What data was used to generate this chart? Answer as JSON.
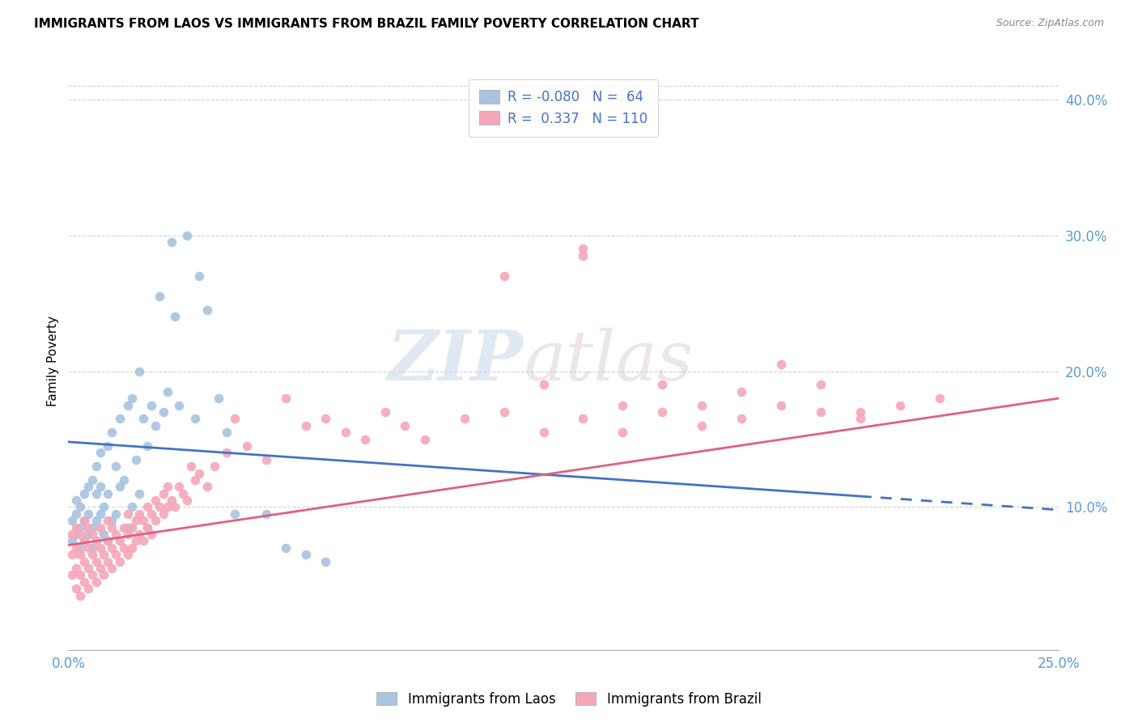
{
  "title": "IMMIGRANTS FROM LAOS VS IMMIGRANTS FROM BRAZIL FAMILY POVERTY CORRELATION CHART",
  "source": "Source: ZipAtlas.com",
  "ylabel": "Family Poverty",
  "xlim": [
    0.0,
    0.25
  ],
  "ylim": [
    -0.005,
    0.42
  ],
  "laos_color": "#a8c4e0",
  "brazil_color": "#f4a7b9",
  "laos_line_color": "#4472c4",
  "brazil_line_color": "#e06080",
  "laos_R": -0.08,
  "laos_N": 64,
  "brazil_R": 0.337,
  "brazil_N": 110,
  "legend_label_laos": "Immigrants from Laos",
  "legend_label_brazil": "Immigrants from Brazil",
  "watermark_zip": "ZIP",
  "watermark_atlas": "atlas",
  "laos_x": [
    0.001,
    0.001,
    0.002,
    0.002,
    0.002,
    0.003,
    0.003,
    0.003,
    0.004,
    0.004,
    0.004,
    0.005,
    0.005,
    0.005,
    0.006,
    0.006,
    0.006,
    0.007,
    0.007,
    0.007,
    0.008,
    0.008,
    0.008,
    0.009,
    0.009,
    0.01,
    0.01,
    0.01,
    0.011,
    0.011,
    0.012,
    0.012,
    0.013,
    0.013,
    0.014,
    0.015,
    0.015,
    0.016,
    0.016,
    0.017,
    0.018,
    0.018,
    0.019,
    0.02,
    0.02,
    0.021,
    0.022,
    0.023,
    0.024,
    0.025,
    0.026,
    0.027,
    0.028,
    0.03,
    0.032,
    0.033,
    0.035,
    0.038,
    0.04,
    0.042,
    0.05,
    0.055,
    0.06,
    0.065
  ],
  "laos_y": [
    0.075,
    0.09,
    0.08,
    0.095,
    0.105,
    0.07,
    0.085,
    0.1,
    0.075,
    0.09,
    0.11,
    0.08,
    0.095,
    0.115,
    0.07,
    0.085,
    0.12,
    0.09,
    0.11,
    0.13,
    0.095,
    0.115,
    0.14,
    0.08,
    0.1,
    0.075,
    0.11,
    0.145,
    0.09,
    0.155,
    0.095,
    0.13,
    0.115,
    0.165,
    0.12,
    0.085,
    0.175,
    0.1,
    0.18,
    0.135,
    0.11,
    0.2,
    0.165,
    0.085,
    0.145,
    0.175,
    0.16,
    0.255,
    0.17,
    0.185,
    0.295,
    0.24,
    0.175,
    0.3,
    0.165,
    0.27,
    0.245,
    0.18,
    0.155,
    0.095,
    0.095,
    0.07,
    0.065,
    0.06
  ],
  "brazil_x": [
    0.001,
    0.001,
    0.001,
    0.002,
    0.002,
    0.002,
    0.002,
    0.003,
    0.003,
    0.003,
    0.003,
    0.004,
    0.004,
    0.004,
    0.004,
    0.005,
    0.005,
    0.005,
    0.005,
    0.006,
    0.006,
    0.006,
    0.007,
    0.007,
    0.007,
    0.008,
    0.008,
    0.008,
    0.009,
    0.009,
    0.01,
    0.01,
    0.01,
    0.011,
    0.011,
    0.011,
    0.012,
    0.012,
    0.013,
    0.013,
    0.014,
    0.014,
    0.015,
    0.015,
    0.015,
    0.016,
    0.016,
    0.017,
    0.017,
    0.018,
    0.018,
    0.019,
    0.019,
    0.02,
    0.02,
    0.021,
    0.021,
    0.022,
    0.022,
    0.023,
    0.024,
    0.024,
    0.025,
    0.025,
    0.026,
    0.027,
    0.028,
    0.029,
    0.03,
    0.031,
    0.032,
    0.033,
    0.035,
    0.037,
    0.04,
    0.042,
    0.045,
    0.05,
    0.055,
    0.06,
    0.065,
    0.07,
    0.075,
    0.08,
    0.085,
    0.09,
    0.1,
    0.11,
    0.12,
    0.13,
    0.14,
    0.15,
    0.16,
    0.17,
    0.18,
    0.19,
    0.2,
    0.21,
    0.22,
    0.11,
    0.12,
    0.13,
    0.14,
    0.15,
    0.16,
    0.17,
    0.18,
    0.19,
    0.2,
    0.13
  ],
  "brazil_y": [
    0.05,
    0.065,
    0.08,
    0.04,
    0.055,
    0.07,
    0.085,
    0.035,
    0.05,
    0.065,
    0.08,
    0.045,
    0.06,
    0.075,
    0.09,
    0.04,
    0.055,
    0.07,
    0.085,
    0.05,
    0.065,
    0.08,
    0.045,
    0.06,
    0.075,
    0.055,
    0.07,
    0.085,
    0.05,
    0.065,
    0.06,
    0.075,
    0.09,
    0.055,
    0.07,
    0.085,
    0.065,
    0.08,
    0.06,
    0.075,
    0.07,
    0.085,
    0.065,
    0.08,
    0.095,
    0.07,
    0.085,
    0.075,
    0.09,
    0.08,
    0.095,
    0.075,
    0.09,
    0.085,
    0.1,
    0.08,
    0.095,
    0.09,
    0.105,
    0.1,
    0.095,
    0.11,
    0.1,
    0.115,
    0.105,
    0.1,
    0.115,
    0.11,
    0.105,
    0.13,
    0.12,
    0.125,
    0.115,
    0.13,
    0.14,
    0.165,
    0.145,
    0.135,
    0.18,
    0.16,
    0.165,
    0.155,
    0.15,
    0.17,
    0.16,
    0.15,
    0.165,
    0.17,
    0.155,
    0.165,
    0.155,
    0.17,
    0.16,
    0.165,
    0.175,
    0.17,
    0.17,
    0.175,
    0.18,
    0.27,
    0.19,
    0.285,
    0.175,
    0.19,
    0.175,
    0.185,
    0.205,
    0.19,
    0.165,
    0.29
  ]
}
